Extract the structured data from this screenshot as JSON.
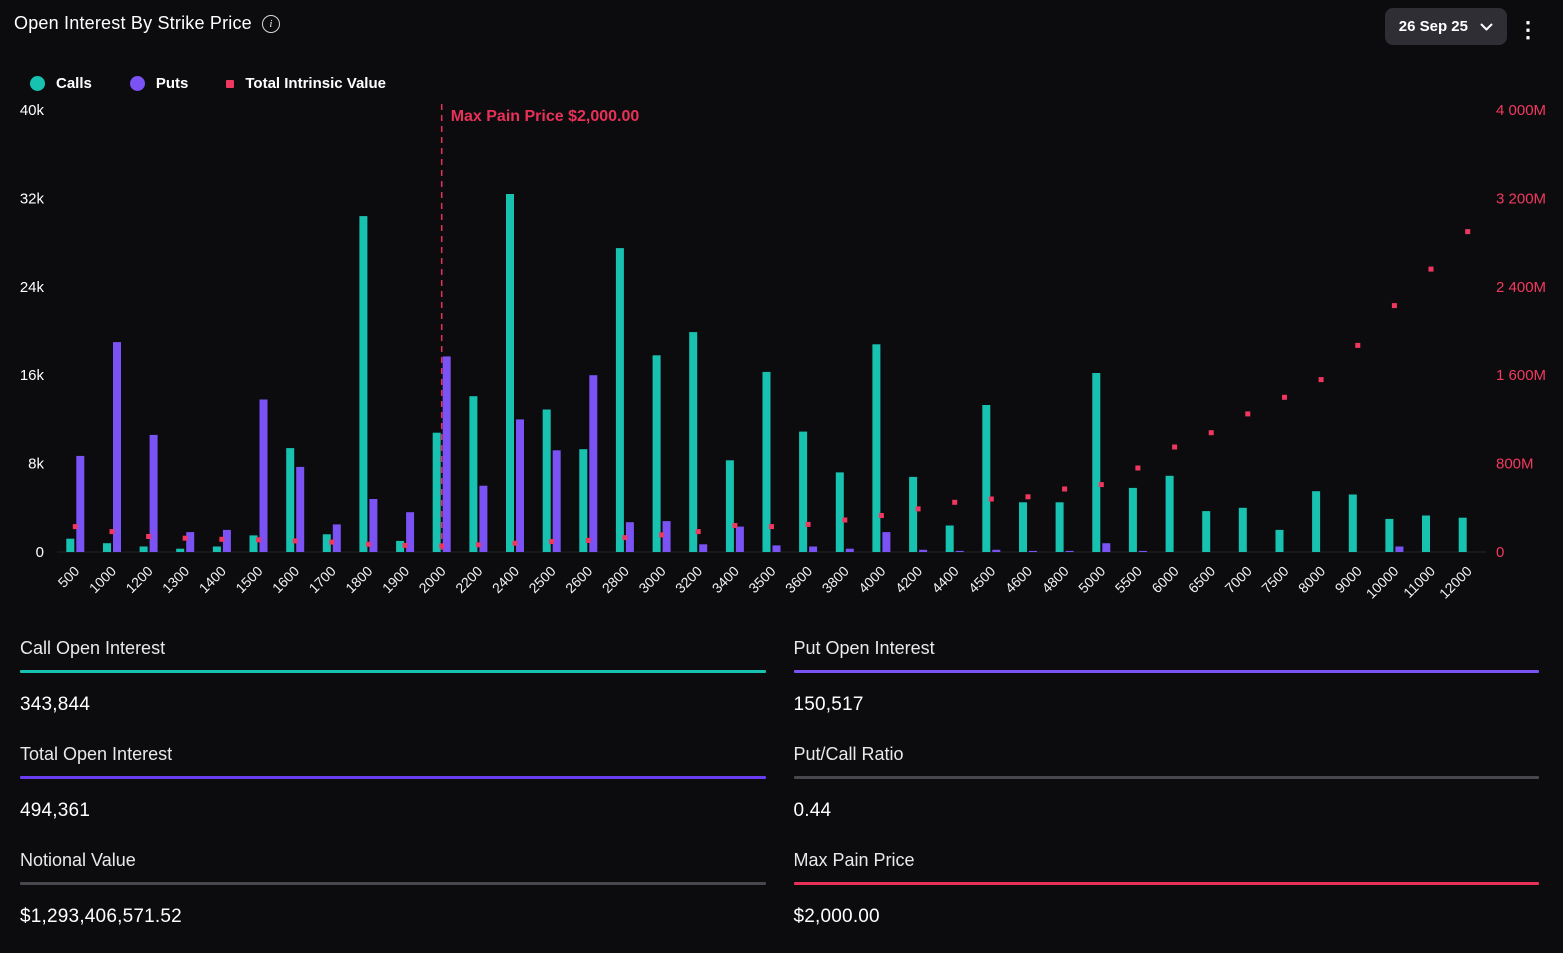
{
  "header": {
    "title": "Open Interest By Strike Price",
    "date_selector": "26 Sep 25"
  },
  "legend": [
    {
      "label": "Calls",
      "color": "#17c3b0",
      "shape": "circle"
    },
    {
      "label": "Puts",
      "color": "#7b52f4",
      "shape": "circle"
    },
    {
      "label": "Total Intrinsic Value",
      "color": "#ef3760",
      "shape": "square"
    }
  ],
  "chart_data": {
    "type": "bar",
    "title": "Open Interest By Strike Price",
    "categories": [
      "500",
      "1000",
      "1200",
      "1300",
      "1400",
      "1500",
      "1600",
      "1700",
      "1800",
      "1900",
      "2000",
      "2200",
      "2400",
      "2500",
      "2600",
      "2800",
      "3000",
      "3200",
      "3400",
      "3500",
      "3600",
      "3800",
      "4000",
      "4200",
      "4400",
      "4500",
      "4600",
      "4800",
      "5000",
      "5500",
      "6000",
      "6500",
      "7000",
      "7500",
      "8000",
      "9000",
      "10000",
      "11000",
      "12000"
    ],
    "series": [
      {
        "name": "Calls",
        "type": "bar",
        "axis": "left",
        "color": "#17c3b0",
        "values": [
          1200,
          800,
          500,
          300,
          500,
          1500,
          9400,
          1600,
          30400,
          1000,
          10800,
          14100,
          32400,
          12900,
          9300,
          27500,
          17800,
          19900,
          8300,
          16300,
          10900,
          7200,
          18800,
          6800,
          2400,
          13300,
          4500,
          4500,
          16200,
          5800,
          6900,
          3700,
          4000,
          2000,
          5500,
          5200,
          3000,
          3300,
          3100
        ]
      },
      {
        "name": "Puts",
        "type": "bar",
        "axis": "left",
        "color": "#7b52f4",
        "values": [
          8700,
          19000,
          10600,
          1800,
          2000,
          13800,
          7700,
          2500,
          4800,
          3600,
          17700,
          6000,
          12000,
          9200,
          16000,
          2700,
          2800,
          700,
          2300,
          600,
          500,
          300,
          1800,
          200,
          100,
          200,
          100,
          100,
          800,
          100,
          0,
          0,
          0,
          0,
          0,
          0,
          500,
          0,
          0
        ]
      },
      {
        "name": "Total Intrinsic Value",
        "type": "scatter",
        "axis": "right",
        "unit": "M",
        "color": "#ef3760",
        "values": [
          230,
          185,
          140,
          125,
          115,
          110,
          100,
          90,
          70,
          60,
          55,
          65,
          80,
          95,
          105,
          130,
          155,
          185,
          240,
          230,
          250,
          290,
          330,
          390,
          450,
          480,
          500,
          570,
          610,
          760,
          950,
          1080,
          1250,
          1400,
          1560,
          1870,
          2230,
          2560,
          2900
        ]
      }
    ],
    "left_axis": {
      "min": 0,
      "max": 40000,
      "ticks": [
        "0",
        "8k",
        "16k",
        "24k",
        "32k",
        "40k"
      ]
    },
    "right_axis": {
      "min": 0,
      "max": 4000,
      "ticks": [
        "0",
        "800M",
        "1 600M",
        "2 400M",
        "3 200M",
        "4 000M"
      ]
    },
    "annotation": {
      "label": "Max Pain Price $2,000.00",
      "x": "2000",
      "color": "#e93059"
    },
    "grid": false,
    "legend_position": "top"
  },
  "stats": [
    {
      "label": "Call Open Interest",
      "value": "343,844",
      "underline": "#17c3b0"
    },
    {
      "label": "Put Open Interest",
      "value": "150,517",
      "underline": "#7b52f4"
    },
    {
      "label": "Total Open Interest",
      "value": "494,361",
      "underline": "#6a3df2"
    },
    {
      "label": "Put/Call Ratio",
      "value": "0.44",
      "underline": "#47474d"
    },
    {
      "label": "Notional Value",
      "value": "$1,293,406,571.52",
      "underline": "#47474d"
    },
    {
      "label": "Max Pain Price",
      "value": "$2,000.00",
      "underline": "#e93059"
    }
  ]
}
